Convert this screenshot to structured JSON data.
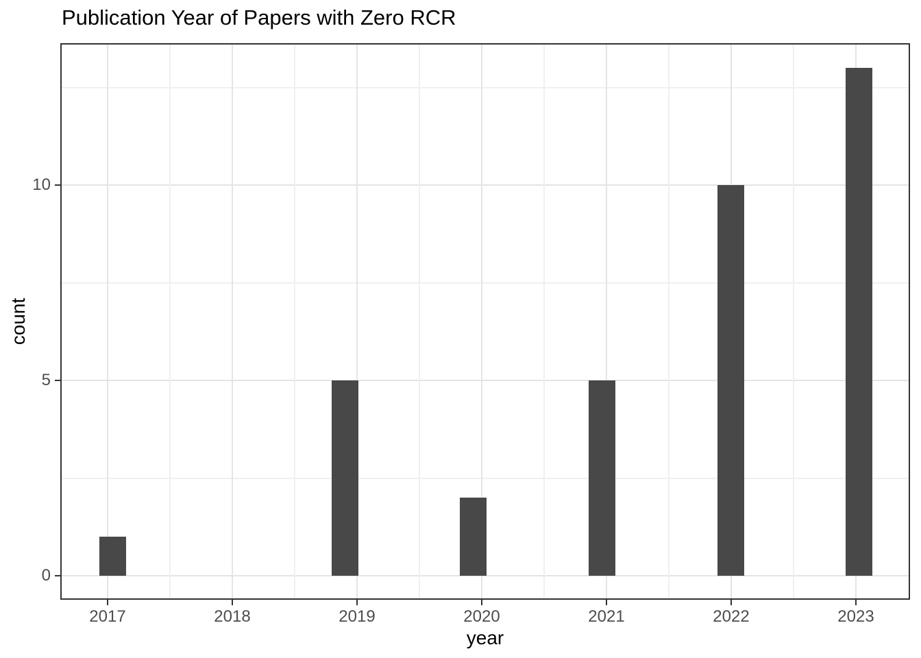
{
  "chart_data": {
    "type": "bar",
    "title": "Publication Year of Papers with Zero RCR",
    "xlabel": "year",
    "ylabel": "count",
    "categories": [
      "2017",
      "2018",
      "2019",
      "2020",
      "2021",
      "2022",
      "2023"
    ],
    "values": [
      1,
      0,
      5,
      2,
      5,
      10,
      13
    ],
    "y_major_ticks": [
      0,
      5,
      10
    ],
    "y_minor_gridlines": [
      2.5,
      7.5,
      12.5
    ],
    "ylim": [
      -0.65,
      13.65
    ],
    "grid": "on",
    "legend": "none",
    "colors": {
      "background": "#ffffff",
      "bar_fill": "#484848",
      "panel_border": "#333333",
      "grid_major": "#e4e4e4",
      "grid_minor": "#f0f0f0",
      "tick_mark": "#333333",
      "tick_label": "#4d4d4d",
      "title_text": "#000000"
    }
  }
}
